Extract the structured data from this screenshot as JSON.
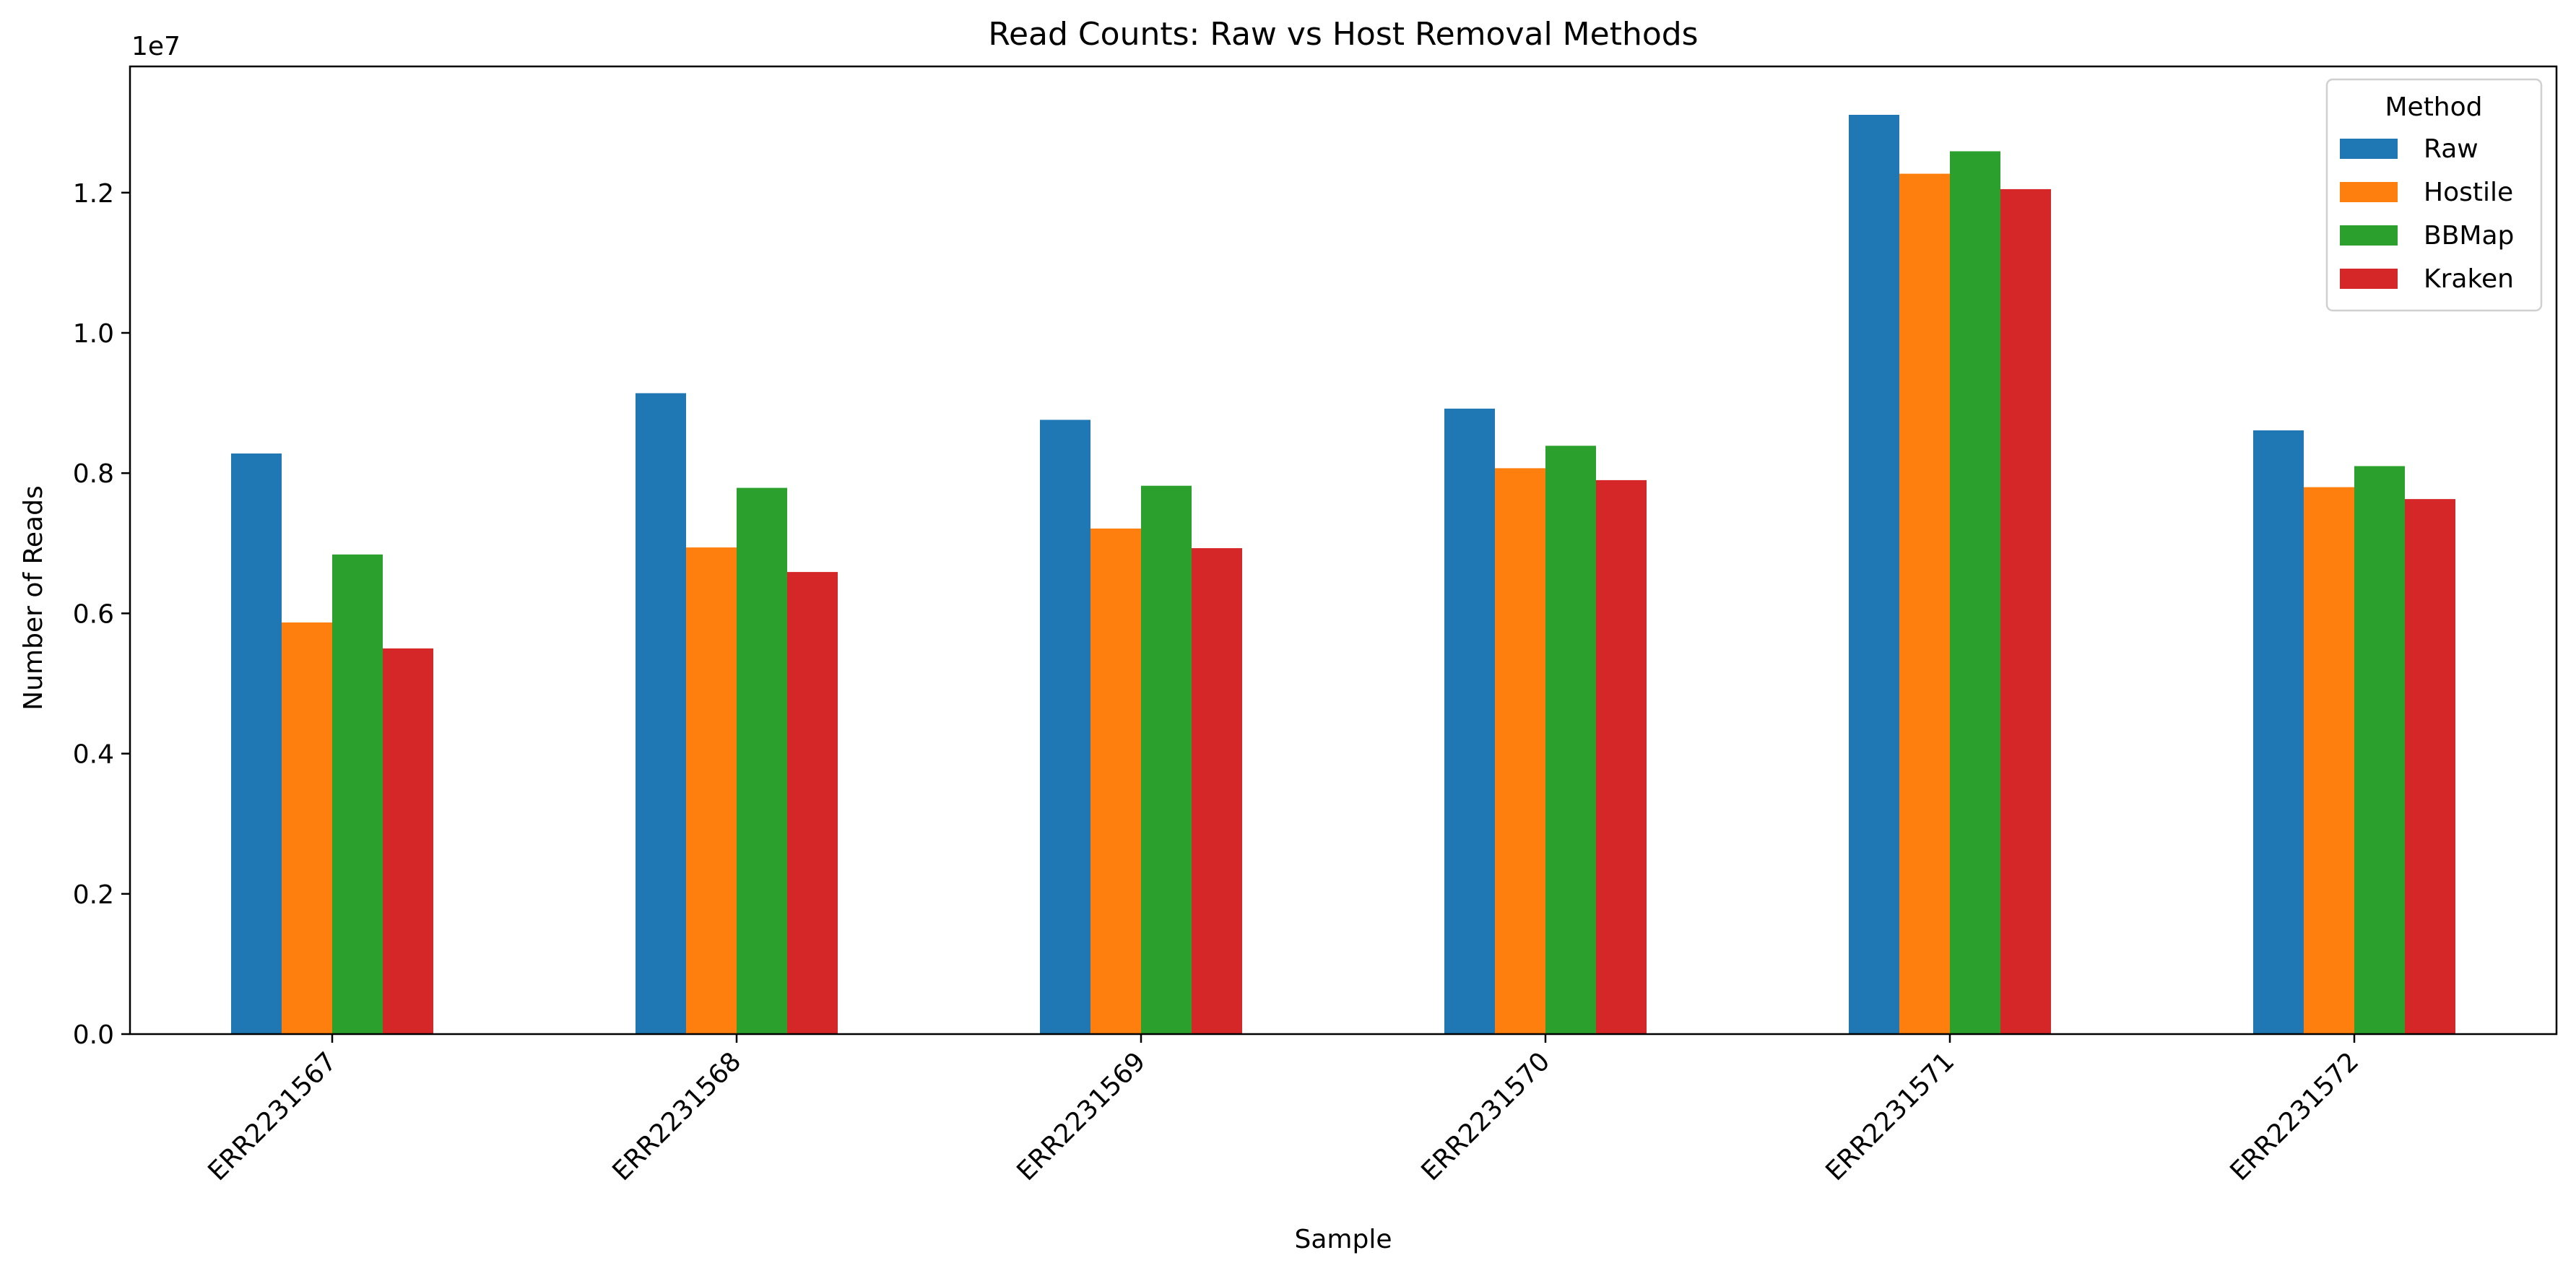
{
  "chart_data": {
    "type": "bar",
    "title": "Read Counts: Raw vs Host Removal Methods",
    "xlabel": "Sample",
    "ylabel": "Number of Reads",
    "offset_label": "1e7",
    "ylim": [
      0,
      13800000
    ],
    "yticks": [
      0,
      2000000,
      4000000,
      6000000,
      8000000,
      10000000,
      12000000
    ],
    "ytick_labels": [
      "0.0",
      "0.2",
      "0.4",
      "0.6",
      "0.8",
      "1.0",
      "1.2"
    ],
    "categories": [
      "ERR2231567",
      "ERR2231568",
      "ERR2231569",
      "ERR2231570",
      "ERR2231571",
      "ERR2231572"
    ],
    "legend": {
      "title": "Method",
      "placement": "top-right"
    },
    "grid": false,
    "series": [
      {
        "name": "Raw",
        "color": "#1f77b4",
        "values": [
          8280000,
          9140000,
          8760000,
          8920000,
          13110000,
          8610000
        ]
      },
      {
        "name": "Hostile",
        "color": "#ff7f0e",
        "values": [
          5870000,
          6940000,
          7210000,
          8070000,
          12270000,
          7800000
        ]
      },
      {
        "name": "BBMap",
        "color": "#2ca02c",
        "values": [
          6840000,
          7790000,
          7820000,
          8390000,
          12590000,
          8100000
        ]
      },
      {
        "name": "Kraken",
        "color": "#d62728",
        "values": [
          5500000,
          6590000,
          6930000,
          7900000,
          12050000,
          7630000
        ]
      }
    ]
  }
}
